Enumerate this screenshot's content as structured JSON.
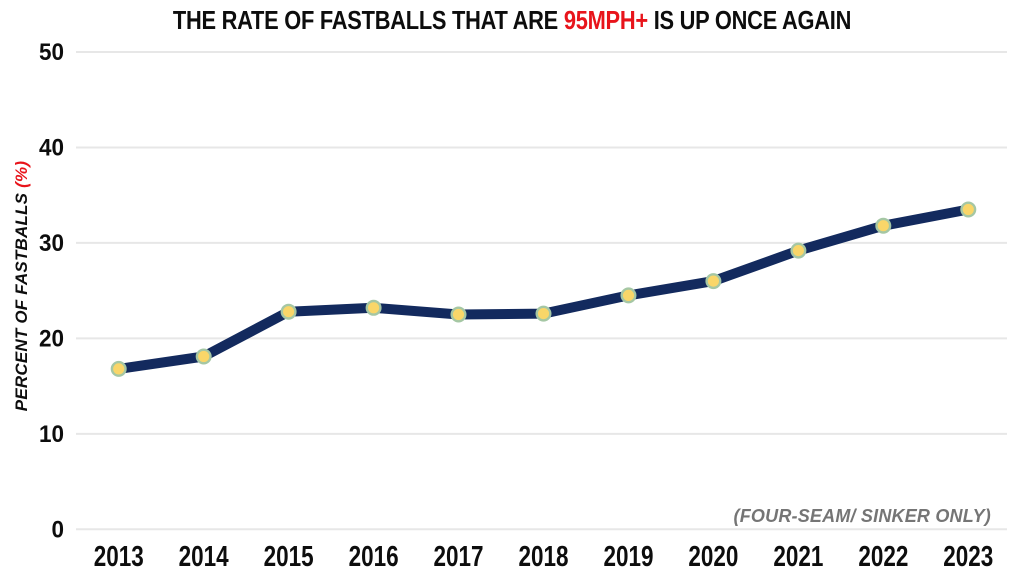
{
  "title": {
    "prefix": "THE RATE OF FASTBALLS THAT ARE ",
    "highlight": "95MPH+",
    "suffix": " IS UP ONCE AGAIN"
  },
  "y_axis": {
    "label_text": "PERCENT OF FASTBALLS ",
    "label_pct": "(%)"
  },
  "annotation": "(FOUR-SEAM/ SINKER ONLY)",
  "colors": {
    "accent_red": "#E8141B",
    "line_navy": "#132A5E",
    "marker_gold": "#F9D669",
    "marker_ring": "#A5C7A4",
    "gridline_gray": "#E7E7E7",
    "annotation_gray": "#757575",
    "text_black": "#0D0D0D"
  },
  "chart_data": {
    "type": "line",
    "title": "THE RATE OF FASTBALLS THAT ARE 95MPH+ IS UP ONCE AGAIN",
    "xlabel": "",
    "ylabel": "PERCENT OF FASTBALLS (%)",
    "annotation": "(FOUR-SEAM/ SINKER ONLY)",
    "categories": [
      "2013",
      "2014",
      "2015",
      "2016",
      "2017",
      "2018",
      "2019",
      "2020",
      "2021",
      "2022",
      "2023"
    ],
    "values": [
      16.8,
      18.1,
      22.8,
      23.2,
      22.5,
      22.6,
      24.5,
      26.0,
      29.2,
      31.8,
      33.5
    ],
    "ylim": [
      0,
      50
    ],
    "yticks": [
      0,
      10,
      20,
      30,
      40,
      50
    ],
    "grid": "horizontal",
    "legend": "none",
    "marker": "circle"
  }
}
